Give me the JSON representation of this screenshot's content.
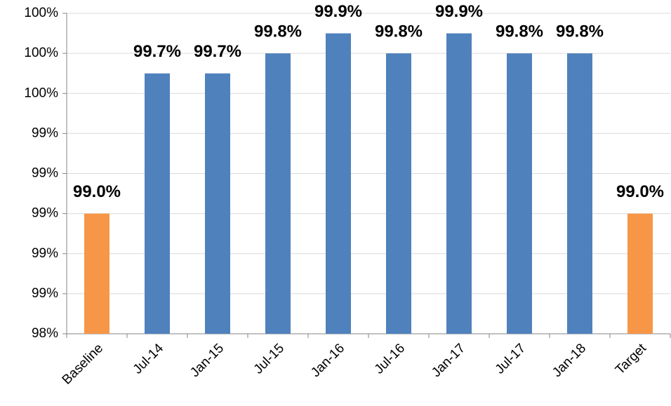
{
  "chart_data": {
    "type": "bar",
    "categories": [
      "Baseline",
      "Jul-14",
      "Jan-15",
      "Jul-15",
      "Jan-16",
      "Jul-16",
      "Jan-17",
      "Jul-17",
      "Jan-18",
      "Target"
    ],
    "values": [
      99.0,
      99.7,
      99.7,
      99.8,
      99.9,
      99.8,
      99.9,
      99.8,
      99.8,
      99.0
    ],
    "value_labels": [
      "99.0%",
      "99.7%",
      "99.7%",
      "99.8%",
      "99.9%",
      "99.8%",
      "99.9%",
      "99.8%",
      "99.8%",
      "99.0%"
    ],
    "colors": [
      "#f79646",
      "#4f81bd",
      "#4f81bd",
      "#4f81bd",
      "#4f81bd",
      "#4f81bd",
      "#4f81bd",
      "#4f81bd",
      "#4f81bd",
      "#f79646"
    ],
    "ylim": [
      98.4,
      100
    ],
    "yticks": [
      {
        "value": 98.4,
        "label": "98%"
      },
      {
        "value": 98.6,
        "label": "99%"
      },
      {
        "value": 98.8,
        "label": "99%"
      },
      {
        "value": 99.0,
        "label": "99%"
      },
      {
        "value": 99.2,
        "label": "99%"
      },
      {
        "value": 99.4,
        "label": "99%"
      },
      {
        "value": 99.6,
        "label": "100%"
      },
      {
        "value": 99.8,
        "label": "100%"
      },
      {
        "value": 100,
        "label": "100%"
      }
    ],
    "grid": true
  }
}
